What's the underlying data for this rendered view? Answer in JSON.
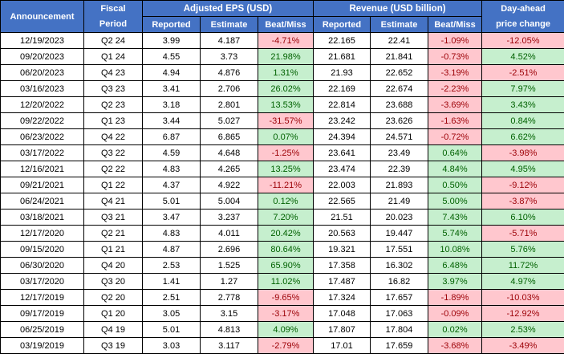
{
  "header": {
    "announcement": "Announcement",
    "fiscal_line1": "Fiscal",
    "fiscal_line2": "Period",
    "eps_group": "Adjusted EPS (USD)",
    "revenue_group": "Revenue (USD billion)",
    "day_ahead_line1": "Day-ahead",
    "day_ahead_line2": "price change",
    "sub_columns": [
      "Reported",
      "Estimate",
      "Beat/Miss",
      "Reported",
      "Estimate",
      "Beat/Miss"
    ]
  },
  "colors": {
    "header_bg": "#4472C4",
    "header_text": "#FFFFFF",
    "beat_bg": "#C6EFCE",
    "beat_text": "#006100",
    "miss_bg": "#FFC7CE",
    "miss_text": "#9C0006"
  },
  "chart_data": {
    "type": "table",
    "columns": [
      "Announcement",
      "Fiscal Period",
      "Adjusted EPS (USD) Reported",
      "Adjusted EPS (USD) Estimate",
      "Adjusted EPS (USD) Beat/Miss",
      "Revenue (USD billion) Reported",
      "Revenue (USD billion) Estimate",
      "Revenue (USD billion) Beat/Miss",
      "Day-ahead price change"
    ],
    "colored_column_indexes": [
      4,
      7,
      8
    ],
    "rows": [
      [
        "12/19/2023",
        "Q2 24",
        "3.99",
        "4.187",
        "-4.71%",
        "22.165",
        "22.41",
        "-1.09%",
        "-12.05%"
      ],
      [
        "09/20/2023",
        "Q1 24",
        "4.55",
        "3.73",
        "21.98%",
        "21.681",
        "21.841",
        "-0.73%",
        "4.52%"
      ],
      [
        "06/20/2023",
        "Q4 23",
        "4.94",
        "4.876",
        "1.31%",
        "21.93",
        "22.652",
        "-3.19%",
        "-2.51%"
      ],
      [
        "03/16/2023",
        "Q3 23",
        "3.41",
        "2.706",
        "26.02%",
        "22.169",
        "22.674",
        "-2.23%",
        "7.97%"
      ],
      [
        "12/20/2022",
        "Q2 23",
        "3.18",
        "2.801",
        "13.53%",
        "22.814",
        "23.688",
        "-3.69%",
        "3.43%"
      ],
      [
        "09/22/2022",
        "Q1 23",
        "3.44",
        "5.027",
        "-31.57%",
        "23.242",
        "23.626",
        "-1.63%",
        "0.84%"
      ],
      [
        "06/23/2022",
        "Q4 22",
        "6.87",
        "6.865",
        "0.07%",
        "24.394",
        "24.571",
        "-0.72%",
        "6.62%"
      ],
      [
        "03/17/2022",
        "Q3 22",
        "4.59",
        "4.648",
        "-1.25%",
        "23.641",
        "23.49",
        "0.64%",
        "-3.98%"
      ],
      [
        "12/16/2021",
        "Q2 22",
        "4.83",
        "4.265",
        "13.25%",
        "23.474",
        "22.39",
        "4.84%",
        "4.95%"
      ],
      [
        "09/21/2021",
        "Q1 22",
        "4.37",
        "4.922",
        "-11.21%",
        "22.003",
        "21.893",
        "0.50%",
        "-9.12%"
      ],
      [
        "06/24/2021",
        "Q4 21",
        "5.01",
        "5.004",
        "0.12%",
        "22.565",
        "21.49",
        "5.00%",
        "-3.87%"
      ],
      [
        "03/18/2021",
        "Q3 21",
        "3.47",
        "3.237",
        "7.20%",
        "21.51",
        "20.023",
        "7.43%",
        "6.10%"
      ],
      [
        "12/17/2020",
        "Q2 21",
        "4.83",
        "4.011",
        "20.42%",
        "20.563",
        "19.447",
        "5.74%",
        "-5.71%"
      ],
      [
        "09/15/2020",
        "Q1 21",
        "4.87",
        "2.696",
        "80.64%",
        "19.321",
        "17.551",
        "10.08%",
        "5.76%"
      ],
      [
        "06/30/2020",
        "Q4 20",
        "2.53",
        "1.525",
        "65.90%",
        "17.358",
        "16.302",
        "6.48%",
        "11.72%"
      ],
      [
        "03/17/2020",
        "Q3 20",
        "1.41",
        "1.27",
        "11.02%",
        "17.487",
        "16.82",
        "3.97%",
        "4.97%"
      ],
      [
        "12/17/2019",
        "Q2 20",
        "2.51",
        "2.778",
        "-9.65%",
        "17.324",
        "17.657",
        "-1.89%",
        "-10.03%"
      ],
      [
        "09/17/2019",
        "Q1 20",
        "3.05",
        "3.15",
        "-3.17%",
        "17.048",
        "17.063",
        "-0.09%",
        "-12.92%"
      ],
      [
        "06/25/2019",
        "Q4 19",
        "5.01",
        "4.813",
        "4.09%",
        "17.807",
        "17.804",
        "0.02%",
        "2.53%"
      ],
      [
        "03/19/2019",
        "Q3 19",
        "3.03",
        "3.117",
        "-2.79%",
        "17.01",
        "17.659",
        "-3.68%",
        "-3.49%"
      ]
    ]
  }
}
